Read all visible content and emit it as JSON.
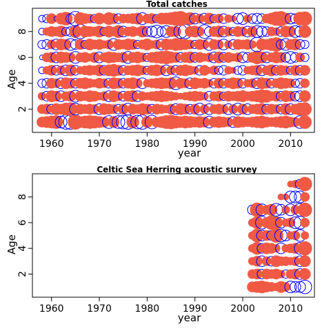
{
  "chart_data": [
    {
      "type": "scatter",
      "subtype": "bubble-residuals",
      "title": "Total catches",
      "xlabel": "year",
      "ylabel": "Age",
      "xlim": [
        1956,
        2015
      ],
      "ylim": [
        0.2,
        9.8
      ],
      "x_ticks": [
        "1960",
        "1970",
        "1980",
        "1990",
        "2000",
        "2010"
      ],
      "y_ticks": [
        "2",
        "4",
        "6",
        "8"
      ],
      "grid": false,
      "legend": "none",
      "years": [
        1958,
        2013
      ],
      "ages": [
        1,
        2,
        3,
        4,
        5,
        6,
        7,
        8,
        9
      ],
      "series": [
        {
          "sign": "positive",
          "fill": "#f05a45",
          "filled": true
        },
        {
          "sign": "negative",
          "stroke": "#0000ff",
          "filled": false
        }
      ],
      "residual_rows": {
        "9": [
          -0.2,
          -0.3,
          0.5,
          -0.1,
          0.6,
          0.8,
          -0.4,
          -0.9,
          0.7,
          0.5,
          0.4,
          -0.3,
          0.6,
          0.3,
          0.7,
          0.5,
          -0.4,
          0.4,
          0.4,
          0.5,
          0.6,
          -0.6,
          0.4,
          0.5,
          -0.3,
          0.6,
          0.6,
          0.7,
          0.9,
          1.0,
          0.6,
          0.7,
          -0.5,
          0.4,
          -0.5,
          0.6,
          -0.3,
          0.4,
          -0.4,
          0.3,
          0.2,
          -0.5,
          -0.6,
          0.3,
          -0.4,
          -0.5,
          -0.4,
          0.4,
          0.6,
          0.9,
          1.0,
          0.6,
          -0.5,
          -0.4,
          0.8,
          0.9
        ],
        "8": [
          -0.2,
          0.3,
          0.5,
          0.4,
          0.6,
          -0.3,
          -0.4,
          0.7,
          -0.9,
          0.6,
          0.5,
          0.4,
          0.6,
          -0.3,
          0.6,
          0.4,
          0.7,
          -0.5,
          0.4,
          0.5,
          0.3,
          0.6,
          -0.4,
          -0.5,
          -0.7,
          -0.4,
          -0.6,
          0.5,
          0.5,
          -0.8,
          -0.9,
          0.5,
          0.6,
          0.4,
          -0.8,
          -0.4,
          0.5,
          0.6,
          -0.5,
          0.4,
          -0.3,
          0.5,
          0.4,
          -0.5,
          0.5,
          -0.6,
          -0.5,
          -0.4,
          0.4,
          0.3,
          -0.4,
          0.6,
          0.5,
          -0.6,
          -0.5,
          0.7
        ],
        "7": [
          -0.3,
          -0.4,
          0.4,
          -0.5,
          0.6,
          0.5,
          -0.6,
          -0.4,
          0.5,
          -0.3,
          0.6,
          0.4,
          0.5,
          0.3,
          0.4,
          -0.6,
          0.5,
          0.4,
          0.6,
          0.5,
          -0.3,
          0.4,
          0.6,
          0.3,
          0.4,
          -0.5,
          0.6,
          0.5,
          0.7,
          0.6,
          0.5,
          0.4,
          -0.3,
          0.5,
          0.4,
          -0.6,
          0.5,
          0.4,
          -0.5,
          0.3,
          -0.4,
          0.5,
          0.4,
          0.5,
          0.3,
          -0.9,
          0.6,
          0.5,
          0.7,
          0.9,
          -0.4,
          -0.6,
          0.5,
          0.6,
          -0.4,
          -0.3
        ],
        "6": [
          -0.1,
          0.4,
          0.5,
          -0.5,
          0.6,
          0.5,
          0.4,
          -0.6,
          0.4,
          0.5,
          0.3,
          0.5,
          -0.5,
          0.4,
          0.6,
          0.5,
          0.4,
          0.5,
          -0.6,
          0.5,
          0.6,
          0.4,
          -0.3,
          0.5,
          0.6,
          0.7,
          0.8,
          0.6,
          0.5,
          -0.4,
          0.5,
          0.6,
          -0.4,
          0.5,
          0.3,
          0.4,
          -0.5,
          0.6,
          -0.4,
          0.5,
          0.3,
          0.4,
          -0.5,
          -0.4,
          0.5,
          0.8,
          0.6,
          -0.5,
          0.4,
          0.6,
          0.5,
          -0.4,
          -0.6,
          -0.4,
          0.4,
          -0.3
        ],
        "5": [
          -0.2,
          0.3,
          0.5,
          -0.4,
          0.4,
          -0.5,
          0.6,
          -0.4,
          0.3,
          0.4,
          0.5,
          0.4,
          0.6,
          -0.4,
          0.6,
          0.7,
          0.5,
          -0.4,
          0.4,
          0.5,
          0.6,
          0.4,
          -0.3,
          0.5,
          0.6,
          0.4,
          -0.5,
          0.4,
          -0.4,
          0.5,
          0.6,
          0.4,
          0.3,
          -0.4,
          0.5,
          0.2,
          0.4,
          -0.3,
          -0.4,
          0.3,
          0.2,
          -0.3,
          -0.4,
          0.3,
          0.4,
          0.5,
          -0.5,
          0.4,
          0.6,
          -0.4,
          0.5,
          0.4,
          -0.3,
          0.5,
          -0.4,
          0.5
        ],
        "4": [
          -0.3,
          -0.4,
          0.5,
          0.4,
          -0.5,
          0.6,
          0.5,
          -0.4,
          0.5,
          0.6,
          0.4,
          0.3,
          0.5,
          0.4,
          -0.4,
          0.6,
          0.5,
          -0.4,
          0.5,
          0.6,
          0.4,
          -0.5,
          0.3,
          0.4,
          0.5,
          0.6,
          0.5,
          0.6,
          -0.7,
          0.5,
          0.4,
          -0.5,
          0.6,
          0.4,
          0.5,
          0.3,
          -0.4,
          0.5,
          -0.4,
          0.4,
          0.6,
          0.5,
          -0.4,
          0.3,
          0.4,
          -0.5,
          0.6,
          0.5,
          -0.4,
          0.4,
          0.6,
          0.5,
          0.4,
          -0.3,
          -0.4,
          0.4
        ],
        "3": [
          0.3,
          -0.4,
          0.6,
          0.5,
          -0.5,
          0.4,
          0.5,
          -0.6,
          0.5,
          0.4,
          0.6,
          0.5,
          0.3,
          0.4,
          -0.5,
          0.6,
          0.4,
          -0.4,
          0.5,
          0.6,
          -0.5,
          0.4,
          0.3,
          0.4,
          0.5,
          0.6,
          0.5,
          0.4,
          0.3,
          0.2,
          0.3,
          0.4,
          0.5,
          0.4,
          0.3,
          -0.4,
          0.4,
          0.5,
          -0.3,
          0.5,
          0.4,
          0.5,
          0.6,
          0.4,
          0.5,
          0.6,
          0.8,
          0.7,
          0.4,
          0.5,
          -0.4,
          0.6,
          0.5,
          -0.4,
          -0.5,
          0.6
        ],
        "2": [
          0.4,
          0.5,
          -0.4,
          0.6,
          0.5,
          0.7,
          0.8,
          -0.6,
          0.5,
          0.4,
          0.5,
          0.4,
          -0.5,
          0.6,
          0.5,
          0.4,
          -0.4,
          0.5,
          -0.6,
          0.5,
          0.4,
          0.6,
          0.5,
          -0.4,
          0.5,
          0.4,
          0.3,
          0.5,
          -0.5,
          0.6,
          0.5,
          -0.4,
          0.5,
          -0.6,
          0.4,
          -0.5,
          0.4,
          0.5,
          0.4,
          -0.5,
          0.4,
          -0.6,
          0.5,
          -0.5,
          0.4,
          0.5,
          0.6,
          -0.4,
          0.5,
          0.4,
          -0.4,
          0.6,
          -0.5,
          0.5,
          0.7,
          0.8
        ],
        "1": [
          0.5,
          0.6,
          0.7,
          0.8,
          -0.6,
          -0.9,
          -0.9,
          1.0,
          0.6,
          0.7,
          0.8,
          0.7,
          0.6,
          0.5,
          -0.7,
          0.6,
          -0.7,
          -0.8,
          -0.9,
          0.7,
          -0.8,
          -0.9,
          0.6,
          -0.8,
          0.5,
          0.6,
          0.8,
          0.9,
          0.7,
          0.6,
          0.7,
          0.6,
          0.5,
          0.6,
          0.5,
          -0.6,
          0.5,
          0.6,
          0.5,
          0.4,
          -0.5,
          0.6,
          0.5,
          0.4,
          0.5,
          0.6,
          0.7,
          0.5,
          0.4,
          0.5,
          0.6,
          0.7,
          0.5,
          0.4,
          -0.7,
          0.8
        ]
      }
    },
    {
      "type": "scatter",
      "subtype": "bubble-residuals",
      "title": "Celtic Sea Herring acoustic survey",
      "xlabel": "year",
      "ylabel": "Age",
      "xlim": [
        1956,
        2015
      ],
      "ylim": [
        0.2,
        9.8
      ],
      "x_ticks": [
        "1960",
        "1970",
        "1980",
        "1990",
        "2000",
        "2010"
      ],
      "y_ticks": [
        "2",
        "4",
        "6",
        "8"
      ],
      "grid": false,
      "legend": "none",
      "years": [
        2002,
        2013
      ],
      "ages": [
        1,
        2,
        3,
        4,
        5,
        6,
        7,
        8,
        9
      ],
      "series": [
        {
          "sign": "positive",
          "fill": "#f05a45",
          "filled": true
        },
        {
          "sign": "negative",
          "stroke": "#0000ff",
          "filled": false
        }
      ],
      "residual_rows": {
        "9": [
          0,
          0,
          0,
          0,
          0,
          0,
          0,
          0,
          0.2,
          0.3,
          -0.4,
          0.9
        ],
        "8": [
          0,
          0,
          0,
          0,
          0,
          0,
          0.2,
          0.2,
          -0.6,
          -0.6,
          -0.6,
          0.4
        ],
        "7": [
          -0.4,
          0.9,
          -0.6,
          0.4,
          0.6,
          -0.7,
          -0.5,
          0.3,
          -0.6,
          0.4,
          -0.7,
          0.9
        ],
        "6": [
          0.3,
          0.7,
          -0.7,
          0.5,
          0.9,
          0.7,
          -0.5,
          0.3,
          0.4,
          -0.6,
          -0.7,
          0.4
        ],
        "5": [
          0.3,
          0.8,
          -0.5,
          0.5,
          -0.4,
          0.9,
          -0.7,
          -0.5,
          0.3,
          0.4,
          -0.6,
          0.3
        ],
        "4": [
          0.3,
          0.7,
          -0.4,
          0.6,
          0.5,
          0.3,
          -0.5,
          0.3,
          0.4,
          0.5,
          -0.6,
          0.9
        ],
        "3": [
          0.3,
          0.5,
          -0.5,
          0.4,
          -0.4,
          0.6,
          0.4,
          0.4,
          0.3,
          0.4,
          -0.5,
          0.6
        ],
        "2": [
          0.4,
          0.5,
          -0.4,
          0.5,
          0.4,
          0.5,
          0.3,
          -0.3,
          0.4,
          0.5,
          -0.5,
          0.6
        ],
        "1": [
          0.5,
          0.6,
          0.7,
          0.5,
          0.4,
          0.3,
          0.6,
          0.4,
          -0.6,
          -0.5,
          -0.5,
          -0.8
        ]
      }
    }
  ]
}
